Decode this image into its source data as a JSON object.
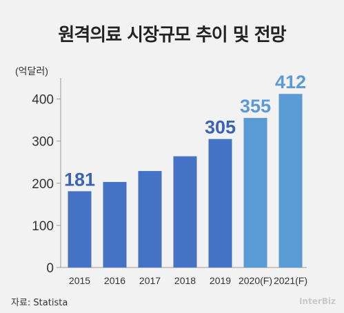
{
  "chart_data": {
    "type": "bar",
    "title": "원격의료 시장규모 추이 및 전망",
    "ylabel": "(억달러)",
    "categories": [
      "2015",
      "2016",
      "2017",
      "2018",
      "2019",
      "2020(F)",
      "2021(F)"
    ],
    "values": [
      181,
      203,
      229,
      264,
      305,
      355,
      412
    ],
    "value_labels": [
      "181",
      "",
      "",
      "",
      "305",
      "355",
      "412"
    ],
    "ylim": [
      0,
      450
    ],
    "yticks": [
      "0",
      "100",
      "200",
      "300",
      "400"
    ],
    "grid": false,
    "colors": {
      "actual_bar": "#4472c4",
      "forecast_bar": "#5b9bd5",
      "actual_label": "#3a63b8",
      "forecast_label": "#5b9bd5"
    },
    "forecast_from_index": 5
  },
  "source": "자료: Statista",
  "watermark": "InterBiz"
}
